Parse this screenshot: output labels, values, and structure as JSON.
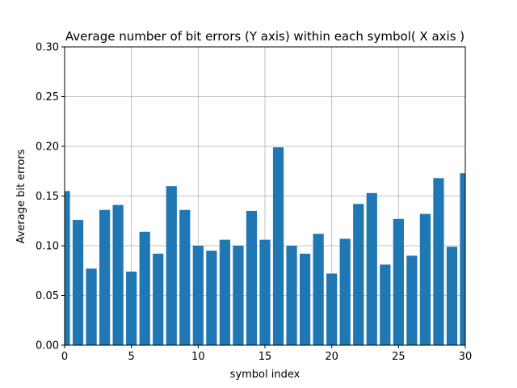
{
  "chart_data": {
    "type": "bar",
    "title": "Average number of bit errors (Y axis) within each symbol( X axis )",
    "xlabel": "symbol index",
    "ylabel": "Average bit errors",
    "xlim": [
      0,
      30
    ],
    "ylim": [
      0,
      0.3
    ],
    "grid": true,
    "x_ticks": [
      0,
      5,
      10,
      15,
      20,
      25,
      30
    ],
    "y_ticks": [
      0.0,
      0.05,
      0.1,
      0.15,
      0.2,
      0.25,
      0.3
    ],
    "x_tick_labels": [
      "0",
      "5",
      "10",
      "15",
      "20",
      "25",
      "30"
    ],
    "y_tick_labels": [
      "0.00",
      "0.05",
      "0.10",
      "0.15",
      "0.20",
      "0.25",
      "0.30"
    ],
    "bar_color": "#1f77b4",
    "bar_width": 0.8,
    "x": [
      0,
      1,
      2,
      3,
      4,
      5,
      6,
      7,
      8,
      9,
      10,
      11,
      12,
      13,
      14,
      15,
      16,
      17,
      18,
      19,
      20,
      21,
      22,
      23,
      24,
      25,
      26,
      27,
      28,
      29,
      30
    ],
    "values": [
      0.155,
      0.126,
      0.077,
      0.136,
      0.141,
      0.074,
      0.114,
      0.092,
      0.16,
      0.136,
      0.1,
      0.095,
      0.106,
      0.1,
      0.135,
      0.106,
      0.199,
      0.1,
      0.092,
      0.112,
      0.072,
      0.107,
      0.142,
      0.153,
      0.081,
      0.127,
      0.09,
      0.132,
      0.168,
      0.099,
      0.173
    ]
  }
}
